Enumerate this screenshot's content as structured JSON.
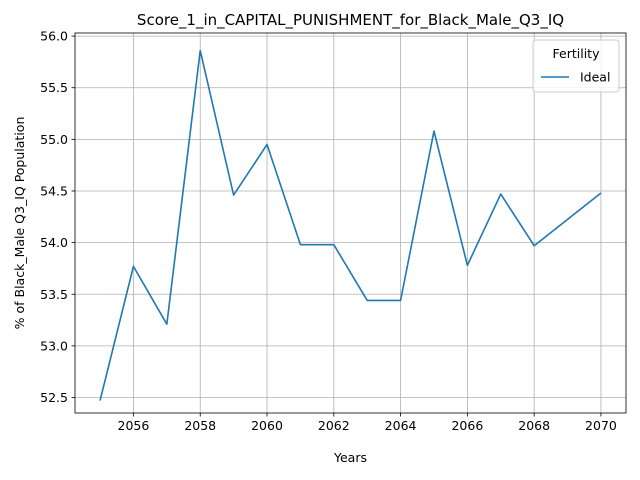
{
  "chart_data": {
    "type": "line",
    "title": "Score_1_in_CAPITAL_PUNISHMENT_for_Black_Male_Q3_IQ",
    "xlabel": "Years",
    "ylabel": "% of Black_Male Q3_IQ Population",
    "xlim": [
      2054.25,
      2070.75
    ],
    "ylim": [
      52.35,
      56.03
    ],
    "xticks": [
      2056,
      2058,
      2060,
      2062,
      2064,
      2066,
      2068,
      2070
    ],
    "yticks": [
      52.5,
      53.0,
      53.5,
      54.0,
      54.5,
      55.0,
      55.5,
      56.0
    ],
    "xtick_labels": [
      "2056",
      "2058",
      "2060",
      "2062",
      "2064",
      "2066",
      "2068",
      "2070"
    ],
    "ytick_labels": [
      "52.5",
      "53.0",
      "53.5",
      "54.0",
      "54.5",
      "55.0",
      "55.5",
      "56.0"
    ],
    "grid": true,
    "legend": {
      "title": "Fertility",
      "placement": "top-right"
    },
    "series": [
      {
        "name": "Ideal",
        "color": "#1f77b4",
        "x": [
          2055,
          2056,
          2057,
          2058,
          2059,
          2060,
          2061,
          2062,
          2063,
          2064,
          2065,
          2066,
          2067,
          2068,
          2070
        ],
        "y": [
          52.47,
          53.77,
          53.21,
          55.86,
          54.46,
          54.95,
          53.98,
          53.98,
          53.44,
          53.44,
          55.08,
          53.78,
          54.47,
          53.97,
          54.48
        ]
      }
    ]
  }
}
